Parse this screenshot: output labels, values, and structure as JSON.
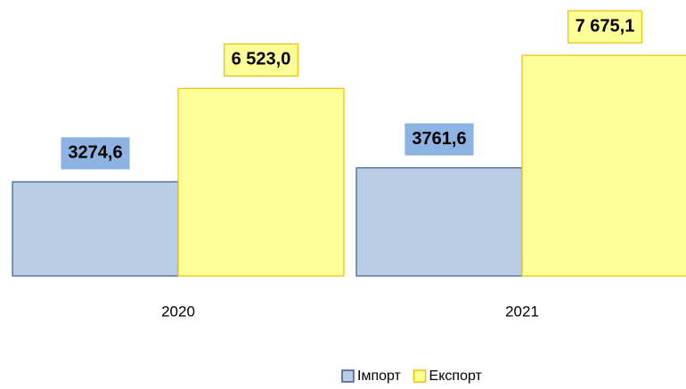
{
  "chart_data": {
    "type": "bar",
    "categories": [
      "2020",
      "2021"
    ],
    "series": [
      {
        "name": "Імпорт",
        "color": "#b9cde5",
        "stroke": "#385d8a",
        "label_color": "#8db3e2",
        "values": [
          3274.6,
          3761.6
        ],
        "value_labels": [
          "3274,6",
          "3761,6"
        ]
      },
      {
        "name": "Експорт",
        "color": "#ffff99",
        "stroke": "#f0c000",
        "label_color": "#ffff99",
        "values": [
          6523.0,
          7675.1
        ],
        "value_labels": [
          "6 523,0",
          "7 675,1"
        ]
      }
    ],
    "ylim": [
      0,
      9600
    ],
    "legend": "bottom"
  }
}
